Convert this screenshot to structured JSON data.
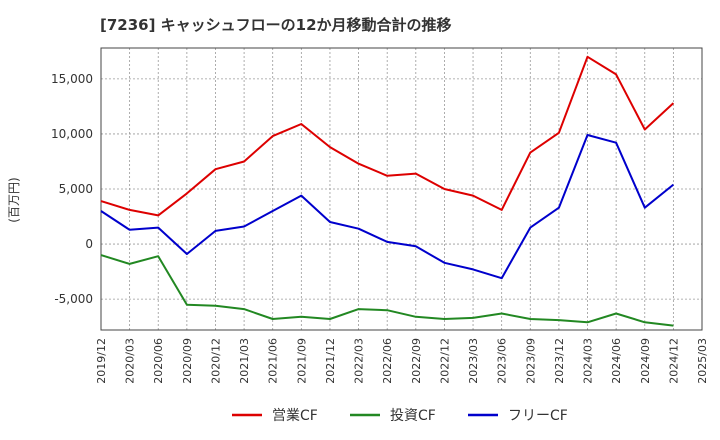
{
  "chart_data": {
    "type": "line",
    "title": "[7236]  キャッシュフローの12か月移動合計の推移",
    "ylabel": "(百万円)",
    "xlabel": "",
    "ylim": [
      -7800,
      17800
    ],
    "yticks": [
      -5000,
      0,
      5000,
      10000,
      15000
    ],
    "ytick_labels": [
      "-5,000",
      "0",
      "5,000",
      "10,000",
      "15,000"
    ],
    "categories": [
      "2019/12",
      "2020/03",
      "2020/06",
      "2020/09",
      "2020/12",
      "2021/03",
      "2021/06",
      "2021/09",
      "2021/12",
      "2022/03",
      "2022/06",
      "2022/09",
      "2022/12",
      "2023/03",
      "2023/06",
      "2023/09",
      "2023/12",
      "2024/03",
      "2024/06",
      "2024/09",
      "2024/12",
      "2025/03"
    ],
    "grid": true,
    "legend_position": "bottom",
    "series": [
      {
        "name": "営業CF",
        "color": "#dd0000",
        "values": [
          3900,
          3100,
          2600,
          4600,
          6800,
          7500,
          9800,
          10900,
          8800,
          7300,
          6200,
          6400,
          5000,
          4400,
          3100,
          8300,
          10100,
          17000,
          15400,
          10400,
          12800,
          null
        ]
      },
      {
        "name": "投資CF",
        "color": "#228822",
        "values": [
          -1000,
          -1800,
          -1100,
          -5500,
          -5600,
          -5900,
          -6800,
          -6600,
          -6800,
          -5900,
          -6000,
          -6600,
          -6800,
          -6700,
          -6300,
          -6800,
          -6900,
          -7100,
          -6300,
          -7100,
          -7400,
          null
        ]
      },
      {
        "name": "フリーCF",
        "color": "#0000cc",
        "values": [
          3000,
          1300,
          1500,
          -900,
          1200,
          1600,
          3000,
          4400,
          2000,
          1400,
          200,
          -200,
          -1700,
          -2300,
          -3100,
          1500,
          3300,
          9900,
          9200,
          3300,
          5400,
          null
        ]
      }
    ]
  }
}
